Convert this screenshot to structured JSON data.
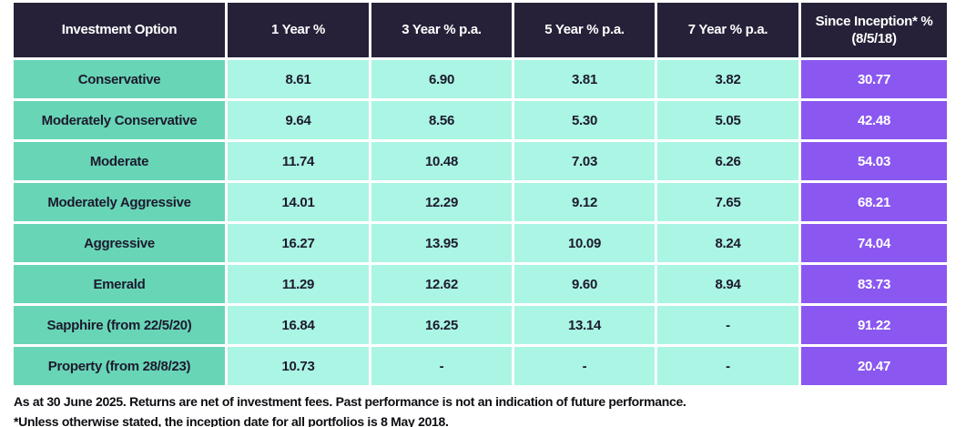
{
  "colors": {
    "header_bg": "#262138",
    "option_column_bg": "#68d5b6",
    "value_cell_bg": "#aaf5e3",
    "inception_column_bg": "#8a58f0",
    "header_text": "#ffffff",
    "cell_text": "#1d1a2e",
    "gap": "#ffffff"
  },
  "table": {
    "headers": [
      "Investment Option",
      "1 Year %",
      "3 Year % p.a.",
      "5 Year % p.a.",
      "7 Year % p.a."
    ],
    "inception_header_line1": "Since Inception* %",
    "inception_header_line2": "(8/5/18)",
    "rows": [
      {
        "option": "Conservative",
        "y1": "8.61",
        "y3": "6.90",
        "y5": "3.81",
        "y7": "3.82",
        "inception": "30.77"
      },
      {
        "option": "Moderately Conservative",
        "y1": "9.64",
        "y3": "8.56",
        "y5": "5.30",
        "y7": "5.05",
        "inception": "42.48"
      },
      {
        "option": "Moderate",
        "y1": "11.74",
        "y3": "10.48",
        "y5": "7.03",
        "y7": "6.26",
        "inception": "54.03"
      },
      {
        "option": "Moderately Aggressive",
        "y1": "14.01",
        "y3": "12.29",
        "y5": "9.12",
        "y7": "7.65",
        "inception": "68.21"
      },
      {
        "option": "Aggressive",
        "y1": "16.27",
        "y3": "13.95",
        "y5": "10.09",
        "y7": "8.24",
        "inception": "74.04"
      },
      {
        "option": "Emerald",
        "y1": "11.29",
        "y3": "12.62",
        "y5": "9.60",
        "y7": "8.94",
        "inception": "83.73"
      },
      {
        "option": "Sapphire (from 22/5/20)",
        "y1": "16.84",
        "y3": "16.25",
        "y5": "13.14",
        "y7": "-",
        "inception": "91.22"
      },
      {
        "option": "Property (from 28/8/23)",
        "y1": "10.73",
        "y3": "-",
        "y5": "-",
        "y7": "-",
        "inception": "20.47"
      }
    ]
  },
  "footnotes": {
    "line1": "As at 30 June 2025. Returns are net of investment fees. Past performance is not an indication of future performance.",
    "line2": "*Unless otherwise stated, the inception date for all portfolios is 8 May 2018."
  },
  "chart_data": {
    "type": "table",
    "title": "Investment option returns",
    "columns": [
      "Investment Option",
      "1 Year %",
      "3 Year % p.a.",
      "5 Year % p.a.",
      "7 Year % p.a.",
      "Since Inception* % (8/5/18)"
    ],
    "rows": [
      [
        "Conservative",
        8.61,
        6.9,
        3.81,
        3.82,
        30.77
      ],
      [
        "Moderately Conservative",
        9.64,
        8.56,
        5.3,
        5.05,
        42.48
      ],
      [
        "Moderate",
        11.74,
        10.48,
        7.03,
        6.26,
        54.03
      ],
      [
        "Moderately Aggressive",
        14.01,
        12.29,
        9.12,
        7.65,
        68.21
      ],
      [
        "Aggressive",
        16.27,
        13.95,
        10.09,
        8.24,
        74.04
      ],
      [
        "Emerald",
        11.29,
        12.62,
        9.6,
        8.94,
        83.73
      ],
      [
        "Sapphire (from 22/5/20)",
        16.84,
        16.25,
        13.14,
        null,
        91.22
      ],
      [
        "Property (from 28/8/23)",
        10.73,
        null,
        null,
        null,
        20.47
      ]
    ],
    "notes": [
      "As at 30 June 2025. Returns are net of investment fees. Past performance is not an indication of future performance.",
      "*Unless otherwise stated, the inception date for all portfolios is 8 May 2018."
    ]
  }
}
